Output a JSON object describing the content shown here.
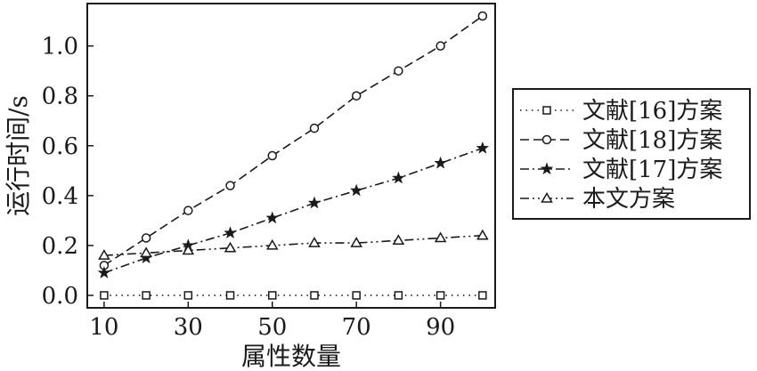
{
  "chart_data": {
    "type": "line",
    "title": "",
    "xlabel": "属性数量",
    "ylabel": "运行时间/s",
    "xlim": [
      6,
      103
    ],
    "ylim": [
      -0.05,
      1.17
    ],
    "xticks": [
      10,
      30,
      50,
      70,
      90
    ],
    "yticks": [
      0.0,
      0.2,
      0.4,
      0.6,
      0.8,
      1.0
    ],
    "ytick_labels": [
      "0.0",
      "0.2",
      "0.4",
      "0.6",
      "0.8",
      "1.0"
    ],
    "grid": false,
    "legend_position": "outside-right",
    "x": [
      10,
      20,
      30,
      40,
      50,
      60,
      70,
      80,
      90,
      100
    ],
    "series": [
      {
        "name": "文献[16]方案",
        "marker": "square",
        "line_style": "dotted",
        "values": [
          0.0,
          0.0,
          0.0,
          0.0,
          0.0,
          0.0,
          0.0,
          0.0,
          0.0,
          0.0
        ]
      },
      {
        "name": "文献[18]方案",
        "marker": "circle",
        "line_style": "dashed",
        "values": [
          0.12,
          0.23,
          0.34,
          0.44,
          0.56,
          0.67,
          0.8,
          0.9,
          1.0,
          1.12
        ]
      },
      {
        "name": "文献[17]方案",
        "marker": "star",
        "line_style": "dashdot",
        "values": [
          0.09,
          0.15,
          0.2,
          0.25,
          0.31,
          0.37,
          0.42,
          0.47,
          0.53,
          0.59
        ]
      },
      {
        "name": "本文方案",
        "marker": "triangle",
        "line_style": "dashdotdot",
        "values": [
          0.16,
          0.17,
          0.18,
          0.19,
          0.2,
          0.21,
          0.21,
          0.22,
          0.23,
          0.24
        ]
      }
    ]
  }
}
